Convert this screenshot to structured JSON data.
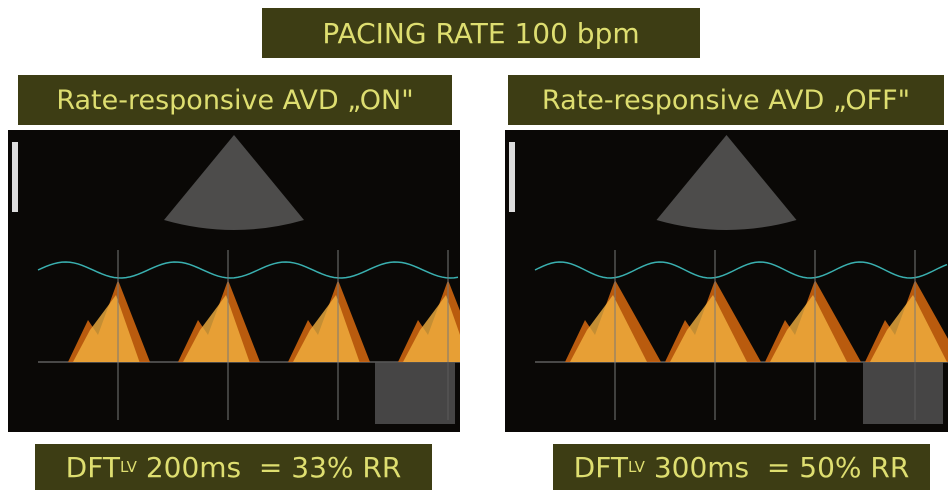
{
  "header": {
    "title": "PACING RATE 100 bpm"
  },
  "panels": [
    {
      "label": "Rate-responsive AVD „ON\"",
      "caption": {
        "main": "DFT",
        "sub": "LV",
        "rest": " 200ms  = 33% RR"
      }
    },
    {
      "label": "Rate-responsive AVD „OFF\"",
      "caption": {
        "main": "DFT",
        "sub": "LV",
        "rest": " 300ms  = 50% RR"
      }
    }
  ]
}
